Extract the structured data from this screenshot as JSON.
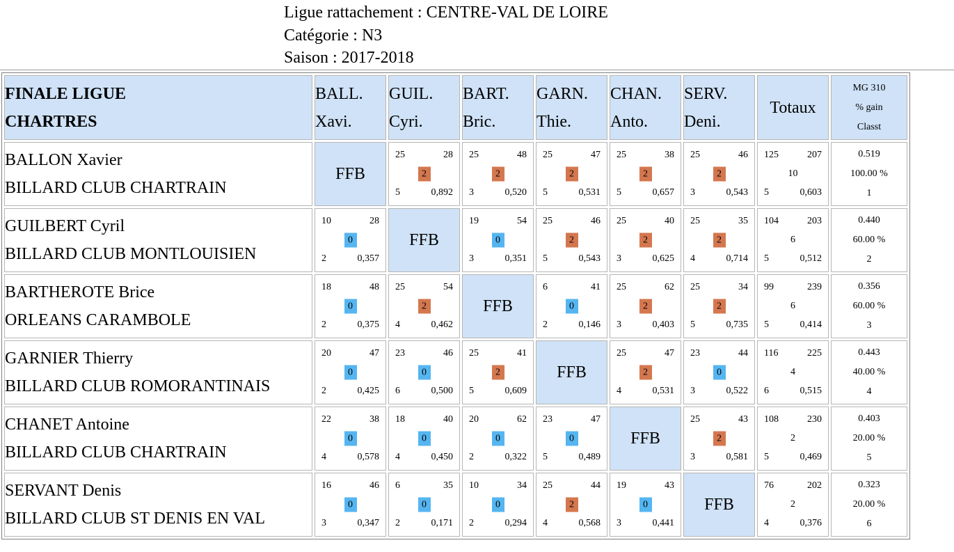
{
  "header": {
    "ligue": "Ligue rattachement : CENTRE-VAL DE LOIRE",
    "categorie": "Catégorie : N3",
    "saison": "Saison : 2017-2018"
  },
  "table": {
    "title_line1": "FINALE LIGUE",
    "title_line2": "CHARTRES",
    "columns": [
      {
        "line1": "BALL.",
        "line2": "Xavi."
      },
      {
        "line1": "GUIL.",
        "line2": "Cyri."
      },
      {
        "line1": "BART.",
        "line2": "Bric."
      },
      {
        "line1": "GARN.",
        "line2": "Thie."
      },
      {
        "line1": "CHAN.",
        "line2": "Anto."
      },
      {
        "line1": "SERV.",
        "line2": "Deni."
      }
    ],
    "totaux_label": "Totaux",
    "mg_label1": "MG 310",
    "mg_label2": "% gain",
    "mg_label3": "Classt",
    "ffb_label": "FFB",
    "win_color": "#d4774f",
    "lose_color": "#55b5f0",
    "header_bg": "#cfe2f7",
    "rows": [
      {
        "name": "BALLON Xavier",
        "club": "BILLARD CLUB CHARTRAIN",
        "cells": [
          null,
          {
            "points": "25",
            "of": "28",
            "result": "2",
            "reprises": "5",
            "avg": "0,892"
          },
          {
            "points": "25",
            "of": "48",
            "result": "2",
            "reprises": "3",
            "avg": "0,520"
          },
          {
            "points": "25",
            "of": "47",
            "result": "2",
            "reprises": "5",
            "avg": "0,531"
          },
          {
            "points": "25",
            "of": "38",
            "result": "2",
            "reprises": "5",
            "avg": "0,657"
          },
          {
            "points": "25",
            "of": "46",
            "result": "2",
            "reprises": "3",
            "avg": "0,543"
          }
        ],
        "totals": {
          "points": "125",
          "of": "207",
          "pts": "10",
          "reprises": "5",
          "avg": "0,603"
        },
        "mg": {
          "mg": "0.519",
          "gain": "100.00 %",
          "rank": "1"
        }
      },
      {
        "name": "GUILBERT Cyril",
        "club": "BILLARD CLUB MONTLOUISIEN",
        "cells": [
          {
            "points": "10",
            "of": "28",
            "result": "0",
            "reprises": "2",
            "avg": "0,357"
          },
          null,
          {
            "points": "19",
            "of": "54",
            "result": "0",
            "reprises": "3",
            "avg": "0,351"
          },
          {
            "points": "25",
            "of": "46",
            "result": "2",
            "reprises": "5",
            "avg": "0,543"
          },
          {
            "points": "25",
            "of": "40",
            "result": "2",
            "reprises": "3",
            "avg": "0,625"
          },
          {
            "points": "25",
            "of": "35",
            "result": "2",
            "reprises": "4",
            "avg": "0,714"
          }
        ],
        "totals": {
          "points": "104",
          "of": "203",
          "pts": "6",
          "reprises": "5",
          "avg": "0,512"
        },
        "mg": {
          "mg": "0.440",
          "gain": "60.00 %",
          "rank": "2"
        }
      },
      {
        "name": "BARTHEROTE Brice",
        "club": "ORLEANS CARAMBOLE",
        "cells": [
          {
            "points": "18",
            "of": "48",
            "result": "0",
            "reprises": "2",
            "avg": "0,375"
          },
          {
            "points": "25",
            "of": "54",
            "result": "2",
            "reprises": "4",
            "avg": "0,462"
          },
          null,
          {
            "points": "6",
            "of": "41",
            "result": "0",
            "reprises": "2",
            "avg": "0,146"
          },
          {
            "points": "25",
            "of": "62",
            "result": "2",
            "reprises": "3",
            "avg": "0,403"
          },
          {
            "points": "25",
            "of": "34",
            "result": "2",
            "reprises": "5",
            "avg": "0,735"
          }
        ],
        "totals": {
          "points": "99",
          "of": "239",
          "pts": "6",
          "reprises": "5",
          "avg": "0,414"
        },
        "mg": {
          "mg": "0.356",
          "gain": "60.00 %",
          "rank": "3"
        }
      },
      {
        "name": "GARNIER Thierry",
        "club": "BILLARD CLUB ROMORANTINAIS",
        "cells": [
          {
            "points": "20",
            "of": "47",
            "result": "0",
            "reprises": "2",
            "avg": "0,425"
          },
          {
            "points": "23",
            "of": "46",
            "result": "0",
            "reprises": "6",
            "avg": "0,500"
          },
          {
            "points": "25",
            "of": "41",
            "result": "2",
            "reprises": "5",
            "avg": "0,609"
          },
          null,
          {
            "points": "25",
            "of": "47",
            "result": "2",
            "reprises": "4",
            "avg": "0,531"
          },
          {
            "points": "23",
            "of": "44",
            "result": "0",
            "reprises": "3",
            "avg": "0,522"
          }
        ],
        "totals": {
          "points": "116",
          "of": "225",
          "pts": "4",
          "reprises": "6",
          "avg": "0,515"
        },
        "mg": {
          "mg": "0.443",
          "gain": "40.00 %",
          "rank": "4"
        }
      },
      {
        "name": "CHANET Antoine",
        "club": "BILLARD CLUB CHARTRAIN",
        "cells": [
          {
            "points": "22",
            "of": "38",
            "result": "0",
            "reprises": "4",
            "avg": "0,578"
          },
          {
            "points": "18",
            "of": "40",
            "result": "0",
            "reprises": "4",
            "avg": "0,450"
          },
          {
            "points": "20",
            "of": "62",
            "result": "0",
            "reprises": "2",
            "avg": "0,322"
          },
          {
            "points": "23",
            "of": "47",
            "result": "0",
            "reprises": "5",
            "avg": "0,489"
          },
          null,
          {
            "points": "25",
            "of": "43",
            "result": "2",
            "reprises": "3",
            "avg": "0,581"
          }
        ],
        "totals": {
          "points": "108",
          "of": "230",
          "pts": "2",
          "reprises": "5",
          "avg": "0,469"
        },
        "mg": {
          "mg": "0.403",
          "gain": "20.00 %",
          "rank": "5"
        }
      },
      {
        "name": "SERVANT Denis",
        "club": "BILLARD CLUB ST DENIS EN VAL",
        "cells": [
          {
            "points": "16",
            "of": "46",
            "result": "0",
            "reprises": "3",
            "avg": "0,347"
          },
          {
            "points": "6",
            "of": "35",
            "result": "0",
            "reprises": "2",
            "avg": "0,171"
          },
          {
            "points": "10",
            "of": "34",
            "result": "0",
            "reprises": "2",
            "avg": "0,294"
          },
          {
            "points": "25",
            "of": "44",
            "result": "2",
            "reprises": "4",
            "avg": "0,568"
          },
          {
            "points": "19",
            "of": "43",
            "result": "0",
            "reprises": "3",
            "avg": "0,441"
          },
          null
        ],
        "totals": {
          "points": "76",
          "of": "202",
          "pts": "2",
          "reprises": "4",
          "avg": "0,376"
        },
        "mg": {
          "mg": "0.323",
          "gain": "20.00 %",
          "rank": "6"
        }
      }
    ]
  }
}
